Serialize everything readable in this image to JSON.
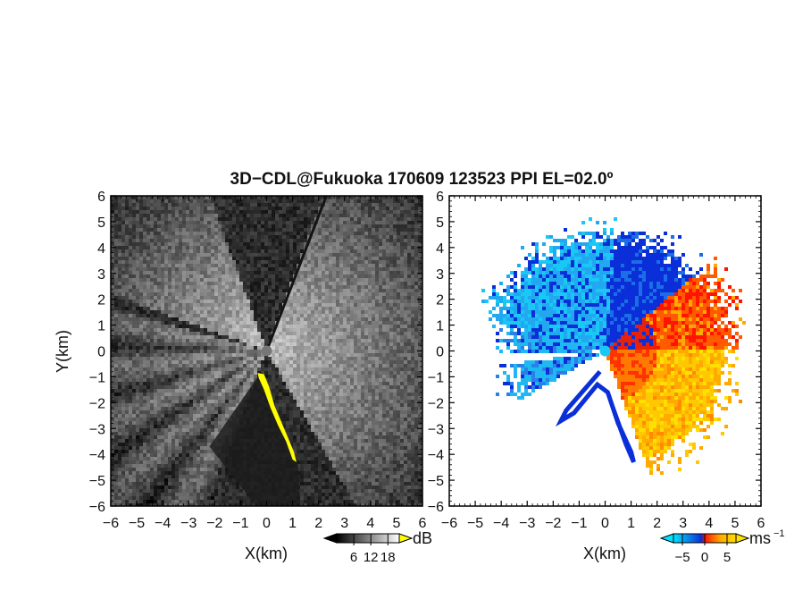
{
  "chart_data": [
    {
      "type": "heatmap",
      "title": "3D−CDL@Fukuoka 170609 123523 PPI EL=02.0º",
      "xlabel": "X(km)",
      "ylabel": "Y(km)",
      "xlim": [
        -6,
        6
      ],
      "ylim": [
        -6,
        6
      ],
      "x_ticks": [
        "−6",
        "−5",
        "−4",
        "−3",
        "−2",
        "−1",
        "0",
        "1",
        "2",
        "3",
        "4",
        "5",
        "6"
      ],
      "y_ticks": [
        "6",
        "5",
        "4",
        "3",
        "2",
        "1",
        "0",
        "−1",
        "−2",
        "−3",
        "−4",
        "−5",
        "−6"
      ],
      "colorbar": {
        "unit": "dB",
        "ticks": [
          "6",
          "12",
          "18"
        ],
        "tick_values": [
          6,
          12,
          18
        ],
        "range": [
          0,
          22
        ],
        "colormap": "grayscale (black to white), yellow overflow",
        "colors": [
          "#000000",
          "#ffffff",
          "#ffff00"
        ]
      },
      "features": {
        "bright_sector_azimuth_deg": [
          20,
          150
        ],
        "dark_wedge_azimuth_deg": [
          160,
          185
        ],
        "blocked_region_azimuth_deg": [
          195,
          345
        ],
        "hard_target_ridge_color": "#ffff00"
      }
    },
    {
      "type": "heatmap",
      "xlabel": "X(km)",
      "xlim": [
        -6,
        6
      ],
      "ylim": [
        -6,
        6
      ],
      "x_ticks": [
        "−6",
        "−5",
        "−4",
        "−3",
        "−2",
        "−1",
        "0",
        "1",
        "2",
        "3",
        "4",
        "5",
        "6"
      ],
      "y_ticks": [
        "6",
        "5",
        "4",
        "3",
        "2",
        "1",
        "0",
        "−1",
        "−2",
        "−3",
        "−4",
        "−5",
        "−6"
      ],
      "colorbar": {
        "unit": "ms",
        "unit_exponent": "−1",
        "ticks": [
          "−5",
          "0",
          "5"
        ],
        "tick_values": [
          -5,
          0,
          5
        ],
        "range": [
          -7,
          7
        ],
        "colormap": "cyan-blue (negative) to red-orange-yellow (positive)",
        "colors": [
          "#00e5ff",
          "#0a2fd8",
          "#ff1400",
          "#ffaa00",
          "#ffe000"
        ]
      },
      "features": {
        "negative_velocity_azimuth_deg": [
          240,
          50
        ],
        "positive_velocity_azimuth_deg": [
          50,
          165
        ],
        "gap_azimuth_deg": [
          165,
          240
        ]
      }
    }
  ]
}
